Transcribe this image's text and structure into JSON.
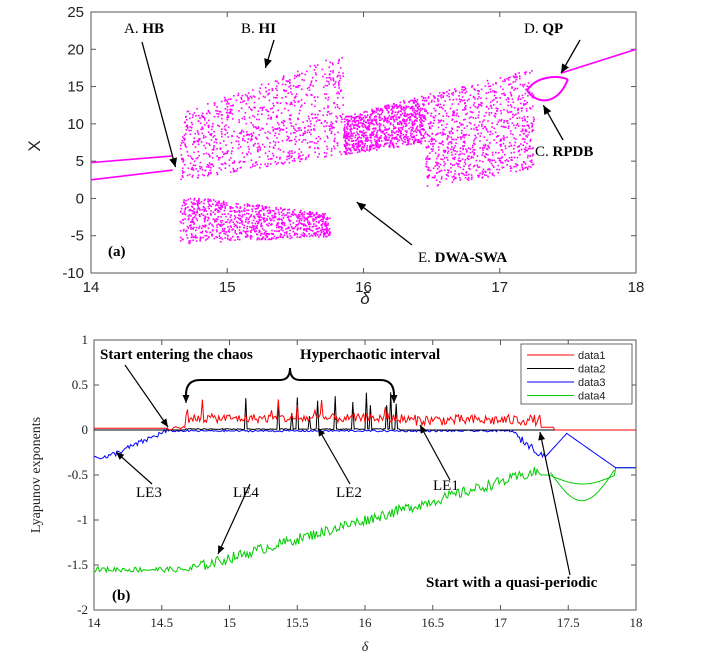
{
  "chart_data": [
    {
      "type": "scatter",
      "panel_label": "(a)",
      "xlabel": "δ",
      "ylabel": "X",
      "xlim": [
        14,
        18
      ],
      "ylim": [
        -10,
        25
      ],
      "xticks": [
        "14",
        "15",
        "16",
        "17",
        "18"
      ],
      "yticks": [
        "-10",
        "-5",
        "0",
        "5",
        "10",
        "15",
        "20",
        "25"
      ],
      "color": "#ff00ff",
      "branches": [
        {
          "x": [
            14.0,
            14.6
          ],
          "y": [
            4.8,
            5.7
          ]
        },
        {
          "x": [
            14.0,
            14.6
          ],
          "y": [
            2.5,
            3.8
          ]
        },
        {
          "x": [
            17.45,
            18.0
          ],
          "y": [
            16.8,
            20.0
          ]
        }
      ],
      "chaotic_bands": [
        {
          "x": [
            14.65,
            15.85
          ],
          "y_low": [
            2.5,
            6.0
          ],
          "y_high": [
            11.5,
            19.5
          ]
        },
        {
          "x": [
            14.65,
            15.75
          ],
          "y_low": [
            -6.0,
            -5.0
          ],
          "y_high": [
            0.5,
            -2.0
          ]
        },
        {
          "x": [
            15.85,
            16.45
          ],
          "y_low": [
            6.0,
            7.5
          ],
          "y_high": [
            11.0,
            14.0
          ]
        },
        {
          "x": [
            16.45,
            17.25
          ],
          "y_low": [
            1.5,
            4.0
          ],
          "y_high": [
            14.0,
            17.5
          ]
        }
      ],
      "loop": {
        "x": [
          17.2,
          17.5
        ],
        "y_upper": 16.5,
        "y_lower": 12.5
      },
      "annotations": [
        {
          "text_a": "A. ",
          "text_b": "HB",
          "x": 14.62,
          "y": 4.2
        },
        {
          "text_a": "B. ",
          "text_b": "HI",
          "x": 15.28,
          "y": 17.5
        },
        {
          "text_a": "D. ",
          "text_b": "QP",
          "x": 17.45,
          "y": 16.8
        },
        {
          "text_a": "C. ",
          "text_b": "RPDB",
          "x": 17.32,
          "y": 12.5
        },
        {
          "text_a": "E. ",
          "text_b": "DWA-SWA",
          "x": 15.95,
          "y": -0.5
        }
      ]
    },
    {
      "type": "line",
      "panel_label": "(b)",
      "xlabel": "δ",
      "ylabel": "Lyapunov exponents",
      "xlim": [
        14,
        18
      ],
      "ylim": [
        -2,
        1
      ],
      "xticks": [
        "14",
        "14.5",
        "15",
        "15.5",
        "16",
        "16.5",
        "17",
        "17.5",
        "18"
      ],
      "yticks": [
        "-2",
        "-1.5",
        "-1",
        "-0.5",
        "0",
        "0.5",
        "1"
      ],
      "legend_position": "top-right",
      "series": [
        {
          "name": "data1",
          "color": "#ff0000"
        },
        {
          "name": "data2",
          "color": "#000000"
        },
        {
          "name": "data3",
          "color": "#0000ff"
        },
        {
          "name": "data4",
          "color": "#00cc00"
        }
      ],
      "annotations": {
        "start_chaos": "Start entering the chaos",
        "hyperchaotic": "Hyperchaotic interval",
        "quasi": "Start with a quasi-periodic",
        "le1": "LE1",
        "le2": "LE2",
        "le3": "LE3",
        "le4": "LE4"
      }
    }
  ]
}
